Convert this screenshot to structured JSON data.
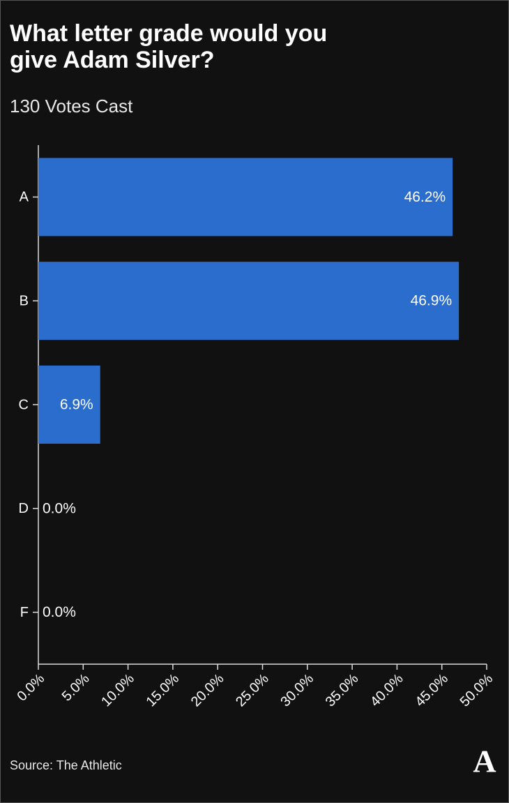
{
  "chart_data": {
    "type": "hbar",
    "title": "What letter grade would you give Adam Silver?",
    "subtitle": "130 Votes Cast",
    "categories": [
      "A",
      "B",
      "C",
      "D",
      "F"
    ],
    "values": [
      46.2,
      46.9,
      6.9,
      0.0,
      0.0
    ],
    "value_labels": [
      "46.2%",
      "46.9%",
      "6.9%",
      "0.0%",
      "0.0%"
    ],
    "color": "#2b6dcc",
    "xlim": [
      0,
      50
    ],
    "xticks": [
      {
        "value": 0,
        "label": "0.0%"
      },
      {
        "value": 5,
        "label": "5.0%"
      },
      {
        "value": 10,
        "label": "10.0%"
      },
      {
        "value": 15,
        "label": "15.0%"
      },
      {
        "value": 20,
        "label": "20.0%"
      },
      {
        "value": 25,
        "label": "25.0%"
      },
      {
        "value": 30,
        "label": "30.0%"
      },
      {
        "value": 35,
        "label": "35.0%"
      },
      {
        "value": 40,
        "label": "40.0%"
      },
      {
        "value": 45,
        "label": "45.0%"
      },
      {
        "value": 50,
        "label": "50.0%"
      }
    ],
    "source": "Source: The Athletic",
    "logo": "A"
  }
}
